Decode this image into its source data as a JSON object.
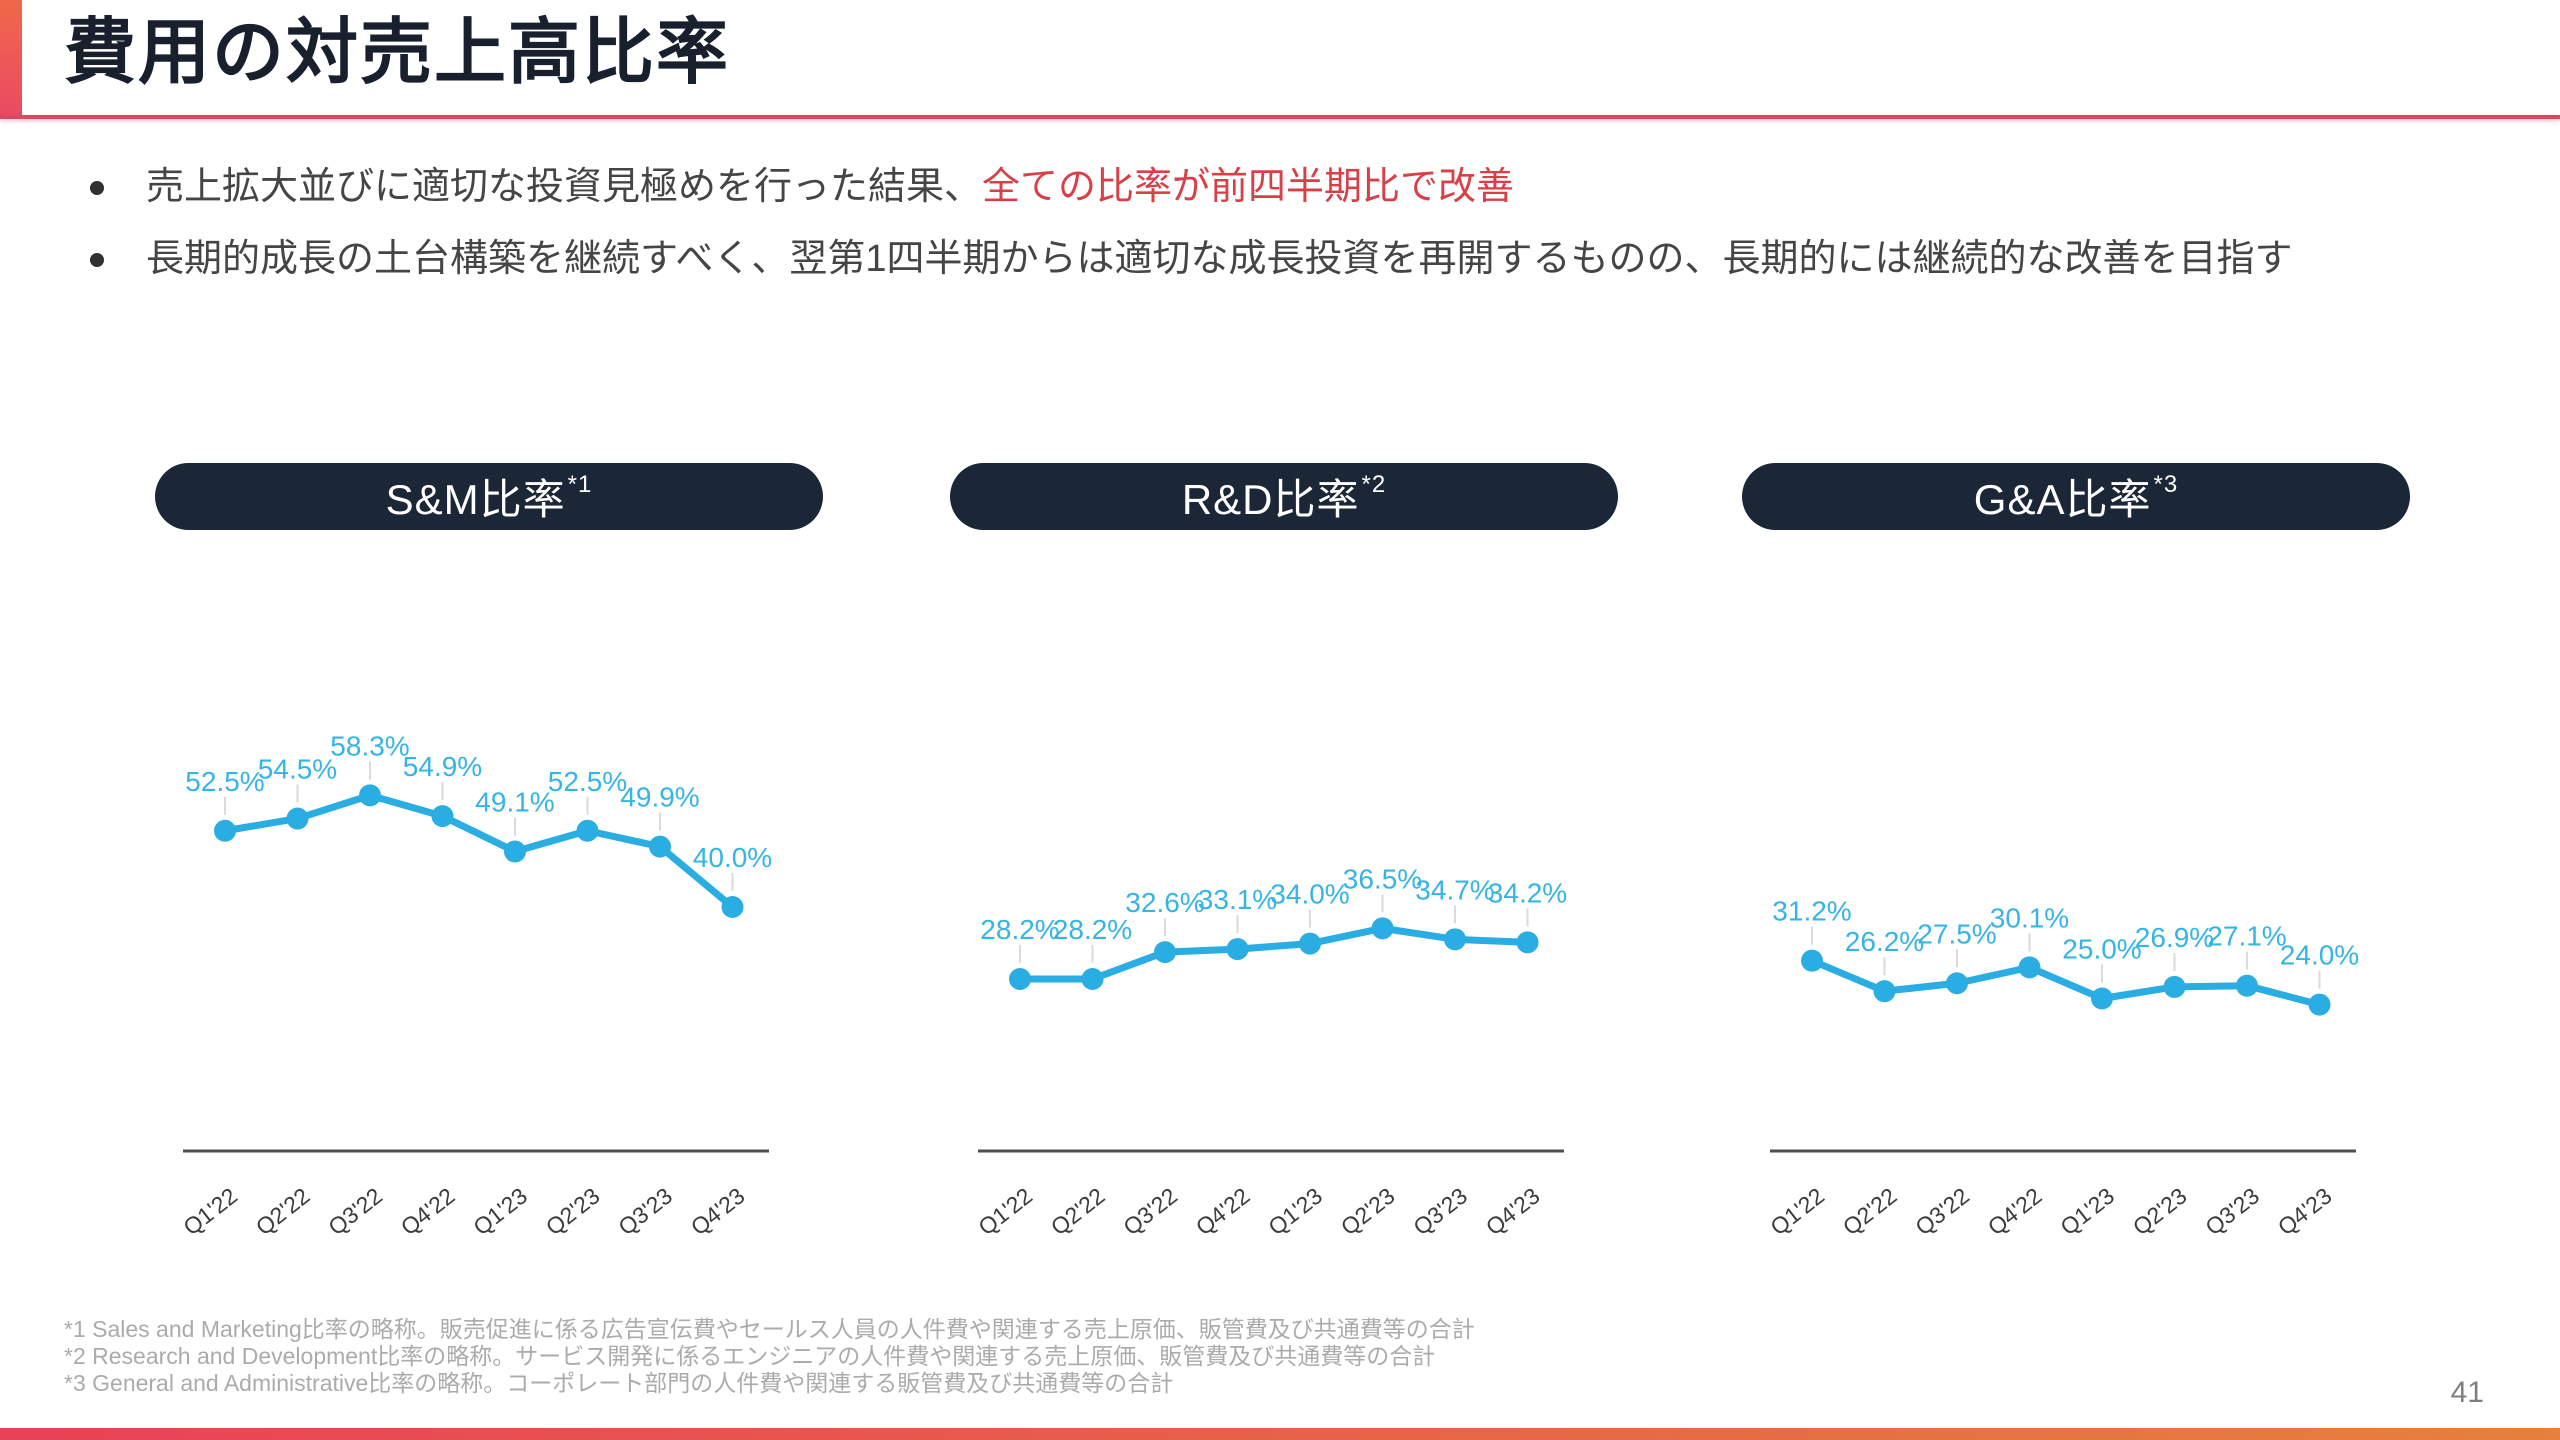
{
  "header": {
    "title": "費用の対売上高比率"
  },
  "bullets": [
    {
      "text": "売上拡大並びに適切な投資見極めを行った結果、",
      "highlight": "全ての比率が前四半期比で改善"
    },
    {
      "text": "長期的成長の土台構築を継続すべく、翌第1四半期からは適切な成長投資を再開するものの、長期的には継続的な改善を目指す",
      "highlight": ""
    }
  ],
  "chart_data": [
    {
      "type": "line",
      "title": "S&M比率",
      "superscript": "*1",
      "unit": "%",
      "categories": [
        "Q1'22",
        "Q2'22",
        "Q3'22",
        "Q4'22",
        "Q1'23",
        "Q2'23",
        "Q3'23",
        "Q4'23"
      ],
      "values": [
        52.5,
        54.5,
        58.3,
        54.9,
        49.1,
        52.5,
        49.9,
        40.0
      ],
      "data_labels": true,
      "legend": "none",
      "ylim": [
        0,
        65
      ]
    },
    {
      "type": "line",
      "title": "R&D比率",
      "superscript": "*2",
      "unit": "%",
      "categories": [
        "Q1'22",
        "Q2'22",
        "Q3'22",
        "Q4'22",
        "Q1'23",
        "Q2'23",
        "Q3'23",
        "Q4'23"
      ],
      "values": [
        28.2,
        28.2,
        32.6,
        33.1,
        34.0,
        36.5,
        34.7,
        34.2
      ],
      "data_labels": true,
      "legend": "none",
      "ylim": [
        0,
        65
      ]
    },
    {
      "type": "line",
      "title": "G&A比率",
      "superscript": "*3",
      "unit": "%",
      "categories": [
        "Q1'22",
        "Q2'22",
        "Q3'22",
        "Q4'22",
        "Q1'23",
        "Q2'23",
        "Q3'23",
        "Q4'23"
      ],
      "values": [
        31.2,
        26.2,
        27.5,
        30.1,
        25.0,
        26.9,
        27.1,
        24.0
      ],
      "data_labels": true,
      "legend": "none",
      "ylim": [
        0,
        65
      ]
    }
  ],
  "footnotes": [
    "*1 Sales and Marketing比率の略称。販売促進に係る広告宣伝費やセールス人員の人件費や関連する売上原価、販管費及び共通費等の合計",
    "*2 Research and Development比率の略称。サービス開発に係るエンジニアの人件費や関連する売上原価、販管費及び共通費等の合計",
    "*3 General and Administrative比率の略称。コーポレート部門の人件費や関連する販管費及び共通費等の合計"
  ],
  "footer": {
    "page_number": "41"
  },
  "colors": {
    "accent_gradient_top": "#F0684A",
    "accent_gradient_bottom": "#EA4A62",
    "title_underline": "#D34B60",
    "title_text": "#18202E",
    "header_pill_navy": "#1B2636",
    "chart_line": "#29ADE2",
    "chart_label": "#35B4E6",
    "leader_line": "#DADADA",
    "axis_line": "#4F4F4F",
    "tick_text": "#3C3C3C",
    "highlight_red": "#D84048",
    "bottom_bar_left": "#E84257",
    "bottom_bar_right": "#E5813C"
  }
}
